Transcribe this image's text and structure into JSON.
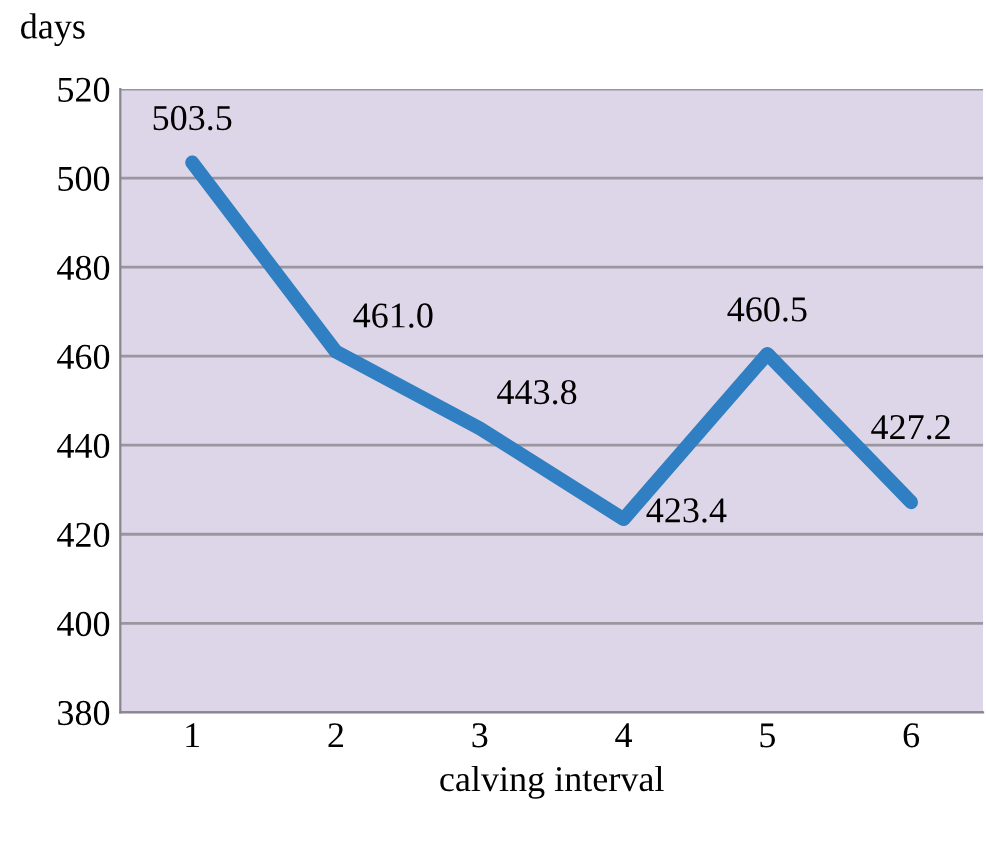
{
  "chart_data": {
    "type": "line",
    "ylabel": "days",
    "xlabel": "calving interval",
    "categories": [
      "1",
      "2",
      "3",
      "4",
      "5",
      "6"
    ],
    "series": [
      {
        "color": "#2f7fc2",
        "values": [
          503.5,
          461.0,
          443.8,
          423.4,
          460.5,
          427.2
        ],
        "value_labels": [
          "503.5",
          "461.0",
          "443.8",
          "423.4",
          "460.5",
          "427.2"
        ]
      }
    ],
    "ylim": [
      380,
      520
    ],
    "yticks": [
      380,
      400,
      420,
      440,
      460,
      480,
      500,
      520
    ],
    "grid": "y",
    "marker": "none",
    "line_style": "solid",
    "legend": false
  }
}
